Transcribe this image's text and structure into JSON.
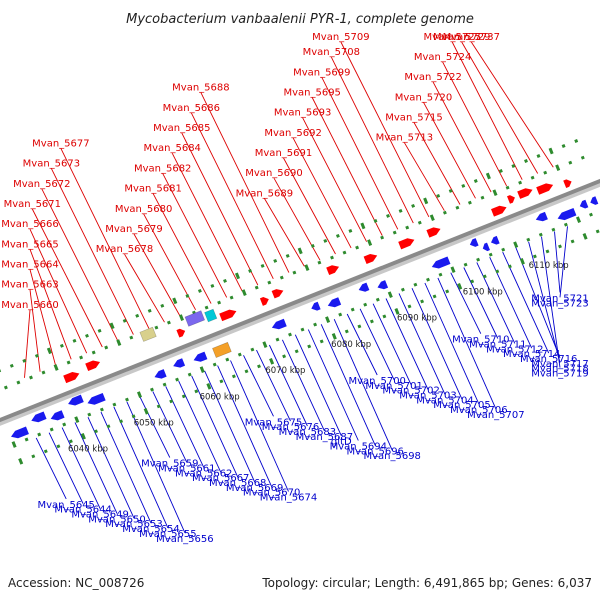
{
  "title": "Mycobacterium vanbaalenii PYR-1, complete genome",
  "footer": {
    "accession": "Accession: NC_008726",
    "summary": "Topology: circular; Length: 6,491,865 bp; Genes: 6,037"
  },
  "colors": {
    "forward_label": "#dd0000",
    "reverse_label": "#0000cc",
    "backbone": "#8a8a8a",
    "tick": "#2e8b2e"
  },
  "kbp_ticks": [
    {
      "label": "6040 kbp"
    },
    {
      "label": "6050 kbp"
    },
    {
      "label": "6060 kbp"
    },
    {
      "label": "6070 kbp"
    },
    {
      "label": "6080 kbp"
    },
    {
      "label": "6090 kbp"
    },
    {
      "label": "6100 kbp"
    },
    {
      "label": "6110 kbp"
    }
  ],
  "forward_genes": [
    {
      "name": "Mvan_5660"
    },
    {
      "name": "Mvan_5663"
    },
    {
      "name": "Mvan_5664"
    },
    {
      "name": "Mvan_5665"
    },
    {
      "name": "Mvan_5666"
    },
    {
      "name": "Mvan_5671"
    },
    {
      "name": "Mvan_5672"
    },
    {
      "name": "Mvan_5673"
    },
    {
      "name": "Mvan_5677"
    },
    {
      "name": "Mvan_5678"
    },
    {
      "name": "Mvan_5679"
    },
    {
      "name": "Mvan_5680"
    },
    {
      "name": "Mvan_5681"
    },
    {
      "name": "Mvan_5682"
    },
    {
      "name": "Mvan_5684"
    },
    {
      "name": "Mvan_5685"
    },
    {
      "name": "Mvan_5686"
    },
    {
      "name": "Mvan_5688"
    },
    {
      "name": "Mvan_5689"
    },
    {
      "name": "Mvan_5690"
    },
    {
      "name": "Mvan_5691"
    },
    {
      "name": "Mvan_5692"
    },
    {
      "name": "Mvan_5693"
    },
    {
      "name": "Mvan_5695"
    },
    {
      "name": "Mvan_5699"
    },
    {
      "name": "Mvan_5708"
    },
    {
      "name": "Mvan_5709"
    },
    {
      "name": "Mvan_5713"
    },
    {
      "name": "Mvan_5715"
    },
    {
      "name": "Mvan_5720"
    },
    {
      "name": "Mvan_5722"
    },
    {
      "name": "Mvan_5724"
    },
    {
      "name": "Mvan_5727"
    },
    {
      "name": "Mvan_5729"
    },
    {
      "name": "Mvan_5737"
    }
  ],
  "reverse_genes": [
    {
      "name": "Mvan_5645"
    },
    {
      "name": "Mvan_5644"
    },
    {
      "name": "Mvan_5649"
    },
    {
      "name": "Mvan_5650"
    },
    {
      "name": "Mvan_5653"
    },
    {
      "name": "Mvan_5654"
    },
    {
      "name": "Mvan_5655"
    },
    {
      "name": "Mvan_5656"
    },
    {
      "name": "Mvan_5659"
    },
    {
      "name": "Mvan_5661"
    },
    {
      "name": "Mvan_5662"
    },
    {
      "name": "Mvan_5667"
    },
    {
      "name": "Mvan_5668"
    },
    {
      "name": "Mvan_5669"
    },
    {
      "name": "Mvan_5670"
    },
    {
      "name": "Mvan_5674"
    },
    {
      "name": "Mvan_5675"
    },
    {
      "name": "Mvan_5676"
    },
    {
      "name": "Mvan_5683"
    },
    {
      "name": "Mvan_5687"
    },
    {
      "name": "gltD"
    },
    {
      "name": "Mvan_5694"
    },
    {
      "name": "Mvan_5696"
    },
    {
      "name": "Mvan_5698"
    },
    {
      "name": "Mvan_5700"
    },
    {
      "name": "Mvan_5701"
    },
    {
      "name": "Mvan_5702"
    },
    {
      "name": "Mvan_5703"
    },
    {
      "name": "Mvan_5704"
    },
    {
      "name": "Mvan_5705"
    },
    {
      "name": "Mvan_5706"
    },
    {
      "name": "Mvan_5707"
    },
    {
      "name": "Mvan_5710"
    },
    {
      "name": "Mvan_5711"
    },
    {
      "name": "Mvan_5712"
    },
    {
      "name": "Mvan_5714"
    },
    {
      "name": "Mvan_5716"
    },
    {
      "name": "Mvan_5717"
    },
    {
      "name": "Mvan_5718"
    },
    {
      "name": "Mvan_5719"
    },
    {
      "name": "Mvan_5721"
    },
    {
      "name": "Mvan_5723"
    }
  ]
}
